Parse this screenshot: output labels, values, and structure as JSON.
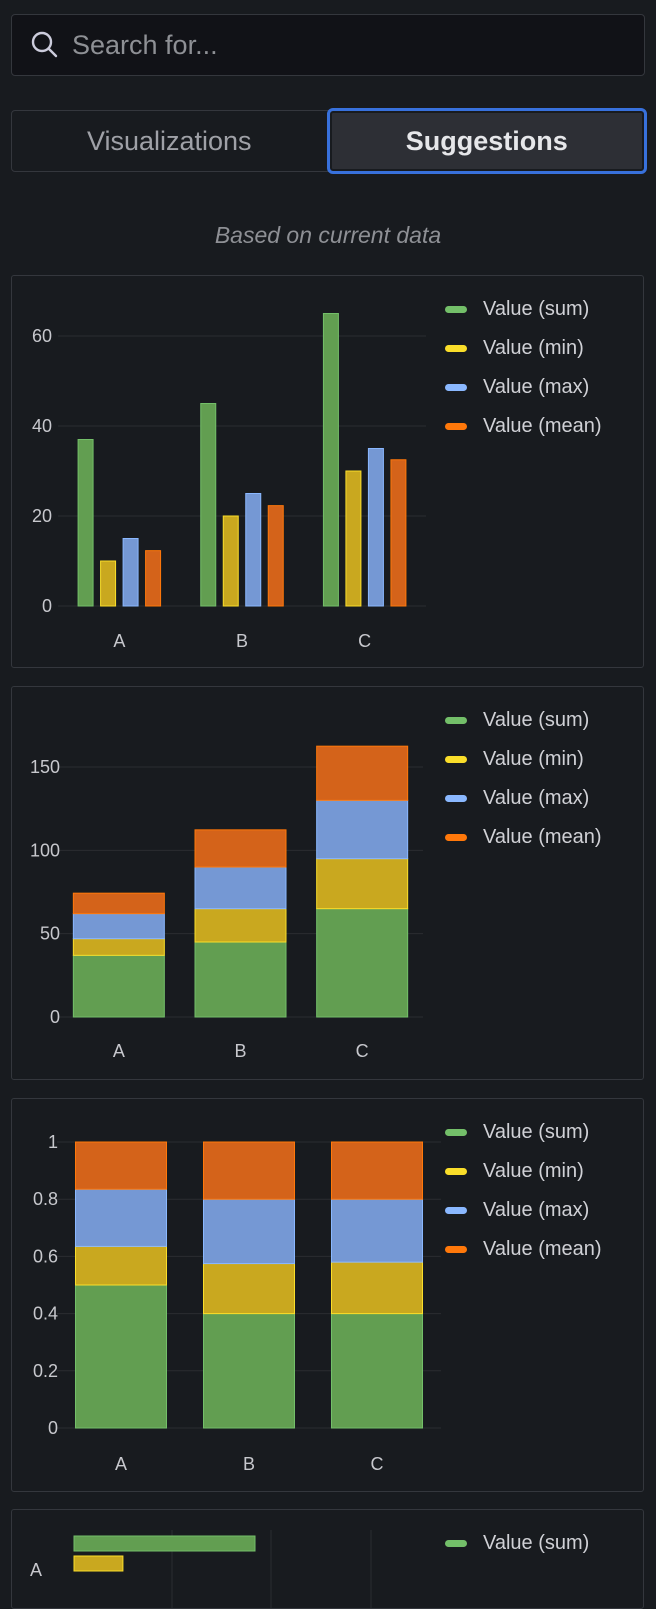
{
  "search": {
    "placeholder": "Search for...",
    "value": ""
  },
  "tabs": [
    {
      "label": "Visualizations",
      "active": false
    },
    {
      "label": "Suggestions",
      "active": true
    }
  ],
  "subtitle": "Based on current data",
  "series": [
    {
      "name": "Value (sum)",
      "color": "#73bf69"
    },
    {
      "name": "Value (min)",
      "color": "#fade2a"
    },
    {
      "name": "Value (max)",
      "color": "#8ab8ff"
    },
    {
      "name": "Value (mean)",
      "color": "#ff780a"
    }
  ],
  "colors": {
    "sum_fill": "#629e51",
    "sum_line": "#73bf69",
    "min_fill": "#c9a81f",
    "min_line": "#fade2a",
    "max_fill": "#7598d4",
    "max_line": "#8ab8ff",
    "mean_fill": "#d4631a",
    "mean_line": "#ff780a",
    "grid": "#2a2c31"
  },
  "chart_data": [
    {
      "type": "bar",
      "mode": "grouped",
      "categories": [
        "A",
        "B",
        "C"
      ],
      "series": [
        {
          "name": "Value (sum)",
          "values": [
            37,
            45,
            65
          ]
        },
        {
          "name": "Value (min)",
          "values": [
            10,
            20,
            30
          ]
        },
        {
          "name": "Value (max)",
          "values": [
            15,
            25,
            35
          ]
        },
        {
          "name": "Value (mean)",
          "values": [
            12.3,
            22.3,
            32.5
          ]
        }
      ],
      "ylim": [
        0,
        70
      ],
      "yticks": [
        "0",
        "20",
        "40",
        "60"
      ],
      "ytick_values": [
        0,
        20,
        40,
        60
      ],
      "legend": "right",
      "grid": true
    },
    {
      "type": "bar",
      "mode": "stacked",
      "categories": [
        "A",
        "B",
        "C"
      ],
      "series": [
        {
          "name": "Value (sum)",
          "values": [
            37,
            45,
            65
          ]
        },
        {
          "name": "Value (min)",
          "values": [
            10,
            20,
            30
          ]
        },
        {
          "name": "Value (max)",
          "values": [
            15,
            25,
            35
          ]
        },
        {
          "name": "Value (mean)",
          "values": [
            12.3,
            22.3,
            32.5
          ]
        }
      ],
      "ylim": [
        0,
        165
      ],
      "yticks": [
        "0",
        "50",
        "100",
        "150"
      ],
      "ytick_values": [
        0,
        50,
        100,
        150
      ],
      "legend": "right",
      "grid": true
    },
    {
      "type": "bar",
      "mode": "percent",
      "categories": [
        "A",
        "B",
        "C"
      ],
      "series": [
        {
          "name": "Value (sum)",
          "values": [
            0.5,
            0.4,
            0.4
          ]
        },
        {
          "name": "Value (min)",
          "values": [
            0.135,
            0.175,
            0.18
          ]
        },
        {
          "name": "Value (max)",
          "values": [
            0.2,
            0.225,
            0.22
          ]
        },
        {
          "name": "Value (mean)",
          "values": [
            0.165,
            0.2,
            0.2
          ]
        }
      ],
      "ylim": [
        0,
        1
      ],
      "yticks": [
        "0",
        "0.2",
        "0.4",
        "0.6",
        "0.8",
        "1"
      ],
      "ytick_values": [
        0,
        0.2,
        0.4,
        0.6,
        0.8,
        1
      ],
      "legend": "right",
      "grid": true
    },
    {
      "type": "bar",
      "mode": "horizontal",
      "categories": [
        "A"
      ],
      "series": [
        {
          "name": "Value (sum)",
          "values": [
            37
          ]
        },
        {
          "name": "Value (min)",
          "values": [
            10
          ]
        }
      ],
      "legend": "right",
      "grid": true
    }
  ]
}
